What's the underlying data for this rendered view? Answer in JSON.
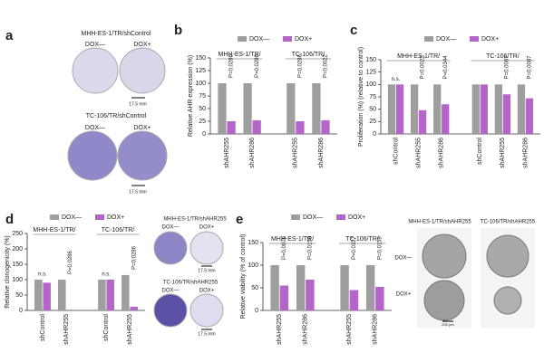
{
  "panel_labels": [
    "a",
    "b",
    "c",
    "d",
    "e"
  ],
  "image_panels": [
    {
      "rows": [
        {
          "title": "MHH-ES-1/TR/shControl",
          "conditions": [
            "DOX—",
            "DOX+"
          ],
          "scale": "17.5 mm"
        },
        {
          "title": "TC-106/TR/shControl",
          "conditions": [
            "DOX—",
            "DOX+"
          ],
          "scale": "17.5 mm"
        }
      ]
    },
    {
      "rows": [
        {
          "title": "MHH-ES-1/TR/shAHR255",
          "conditions": [
            "DOX—",
            "DOX+"
          ],
          "scale": "17.5 mm"
        },
        {
          "title": "TC-106/TR/shAHR255",
          "conditions": [
            "DOX—",
            "DOX+"
          ],
          "scale": "17.5 mm"
        }
      ]
    },
    {
      "columns": [
        "MHH-ES-1/TR/shAHR255",
        "TC-106/TR/shAHR255"
      ],
      "rows": [
        "DOX—",
        "DOX+"
      ],
      "scale": "200 µm"
    }
  ],
  "chart_data": [
    {
      "type": "bar",
      "y_label": "Relative AHR expression (%)",
      "categories": [
        "shAHR255",
        "shAHR286",
        "shAHR255",
        "shAHR286"
      ],
      "groups": [
        {
          "label": "MHH-ES-1/TR/",
          "categories": [
            0,
            1
          ]
        },
        {
          "label": "TC-106/TR/",
          "categories": [
            2,
            3
          ]
        }
      ],
      "series": [
        {
          "name": "DOX—",
          "color": "#9e9e9e",
          "values": [
            100,
            100,
            100,
            100
          ]
        },
        {
          "name": "DOX+",
          "color": "#b565c9",
          "values": [
            25,
            27,
            25,
            27
          ]
        }
      ],
      "annotations": [
        {
          "text": "P=0.0286",
          "category": 0
        },
        {
          "text": "P=0.0286",
          "category": 1
        },
        {
          "text": "P=0.0286",
          "category": 2
        },
        {
          "text": "P=0.0022",
          "category": 3
        }
      ],
      "ylim": [
        0,
        150
      ],
      "yticks": [
        0,
        25,
        50,
        75,
        100,
        125,
        150
      ],
      "legend": "top"
    },
    {
      "type": "bar",
      "y_label": "Proliferation (%) (relative to control)",
      "categories": [
        "shControl",
        "shAHR255",
        "shAHR286",
        "shControl",
        "shAHR255",
        "shAHR286"
      ],
      "groups": [
        {
          "label": "MHH-ES-1/TR/",
          "categories": [
            0,
            1,
            2
          ]
        },
        {
          "label": "TC-106/TR/",
          "categories": [
            3,
            4,
            5
          ]
        }
      ],
      "series": [
        {
          "name": "DOX—",
          "color": "#9e9e9e",
          "values": [
            100,
            100,
            100,
            100,
            100,
            100
          ]
        },
        {
          "name": "DOX+",
          "color": "#b565c9",
          "values": [
            100,
            48,
            60,
            100,
            80,
            72
          ]
        }
      ],
      "annotations": [
        {
          "text": "n.s.",
          "category": 0
        },
        {
          "text": "P=0.0022",
          "category": 1
        },
        {
          "text": "P=0.0344",
          "category": 2
        },
        {
          "text": "P=0.0087",
          "category": 4
        },
        {
          "text": "P=0.0087",
          "category": 5
        }
      ],
      "ylim": [
        0,
        150
      ],
      "yticks": [
        0,
        25,
        50,
        75,
        100,
        125,
        150
      ],
      "legend": "top"
    },
    {
      "type": "bar",
      "y_label": "Relative clonogenicity (%)",
      "categories": [
        "shControl",
        "shAHR255",
        "shControl",
        "shAHR255"
      ],
      "groups": [
        {
          "label": "MHH-ES-1/TR/",
          "categories": [
            0,
            1
          ]
        },
        {
          "label": "TC-106/TR/",
          "categories": [
            2,
            3
          ]
        }
      ],
      "series": [
        {
          "name": "DOX—",
          "color": "#9e9e9e",
          "values": [
            100,
            100,
            100,
            115
          ]
        },
        {
          "name": "DOX+",
          "color": "#b565c9",
          "values": [
            90,
            2,
            100,
            12
          ]
        }
      ],
      "annotations": [
        {
          "text": "n.s.",
          "category": 0
        },
        {
          "text": "P=0.0286",
          "category": 1
        },
        {
          "text": "n.s.",
          "category": 2
        },
        {
          "text": "P=0.0286",
          "category": 3
        }
      ],
      "ylim": [
        0,
        250
      ],
      "yticks": [
        0,
        50,
        100,
        150,
        200,
        250
      ],
      "legend": "top"
    },
    {
      "type": "bar",
      "y_label": "Relative viability (% of control)",
      "categories": [
        "shAHR255",
        "shAHR286",
        "shAHR255",
        "shAHR286"
      ],
      "groups": [
        {
          "label": "MHH-ES-1/TR/",
          "categories": [
            0,
            1
          ]
        },
        {
          "label": "TC-106/TR/",
          "categories": [
            2,
            3
          ]
        }
      ],
      "series": [
        {
          "name": "DOX—",
          "color": "#9e9e9e",
          "values": [
            100,
            100,
            100,
            100
          ]
        },
        {
          "name": "DOX+",
          "color": "#b565c9",
          "values": [
            55,
            68,
            45,
            52
          ]
        }
      ],
      "annotations": [
        {
          "text": "P=0.0079",
          "category": 0
        },
        {
          "text": "P=0.0159",
          "category": 1
        },
        {
          "text": "P=0.0317",
          "category": 2
        },
        {
          "text": "P=0.0159",
          "category": 3
        }
      ],
      "ylim": [
        0,
        150
      ],
      "yticks": [
        0,
        50,
        100,
        150
      ],
      "legend": "top"
    }
  ]
}
